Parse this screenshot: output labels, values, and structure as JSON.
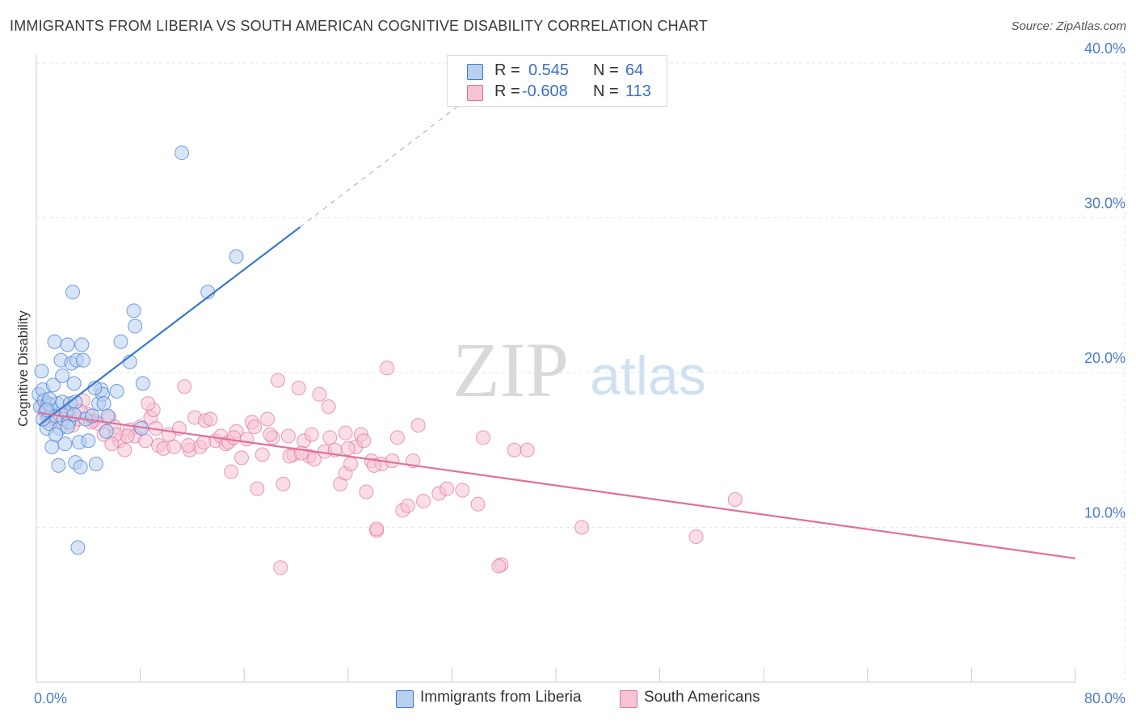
{
  "title": "IMMIGRANTS FROM LIBERIA VS SOUTH AMERICAN COGNITIVE DISABILITY CORRELATION CHART",
  "source": "Source: ZipAtlas.com",
  "watermark": {
    "zip": "ZIP",
    "atlas": "atlas"
  },
  "colors": {
    "blue": "#3a77d0",
    "blue_fill": "#b8cff0",
    "pink": "#e0709a",
    "pink_fill": "#f5c3d4",
    "axis_label": "#4a7cc9",
    "grid": "#e6e6e6"
  },
  "legend": {
    "rows": [
      {
        "r_label": "R =",
        "r_value": "0.545",
        "n_label": "N =",
        "n_value": "64"
      },
      {
        "r_label": "R =",
        "r_value": "-0.608",
        "n_label": "N =",
        "n_value": "113"
      }
    ]
  },
  "bottom_legend": [
    {
      "label": "Immigrants from Liberia"
    },
    {
      "label": "South Americans"
    }
  ],
  "chart_data": {
    "type": "scatter",
    "title": "IMMIGRANTS FROM LIBERIA VS SOUTH AMERICAN COGNITIVE DISABILITY CORRELATION CHART",
    "ylabel": "Cognitive Disability",
    "xlabel": "",
    "xlim": [
      0,
      80
    ],
    "ylim": [
      0,
      40
    ],
    "x_tick_labels": [
      "0.0%",
      "80.0%"
    ],
    "y_ticks": [
      10,
      20,
      30,
      40
    ],
    "y_tick_labels": [
      "10.0%",
      "20.0%",
      "30.0%",
      "40.0%"
    ],
    "grid": true,
    "series": [
      {
        "name": "Immigrants from Liberia",
        "color": "#3a77d0",
        "trend": {
          "x0": 0.2,
          "y0": 16.6,
          "x1": 20.3,
          "y1": 29.4,
          "dash_to_x": 34.0,
          "dash_to_y": 38.2
        },
        "points": [
          [
            0.2,
            18.6
          ],
          [
            0.3,
            17.8
          ],
          [
            0.4,
            20.1
          ],
          [
            0.5,
            18.9
          ],
          [
            0.6,
            18.2
          ],
          [
            0.7,
            17.5
          ],
          [
            0.8,
            16.4
          ],
          [
            0.9,
            18.0
          ],
          [
            1.0,
            16.7
          ],
          [
            1.1,
            17.9
          ],
          [
            1.2,
            15.2
          ],
          [
            1.3,
            19.2
          ],
          [
            1.4,
            22.0
          ],
          [
            1.5,
            17.2
          ],
          [
            1.6,
            18.0
          ],
          [
            1.7,
            14.0
          ],
          [
            1.8,
            16.4
          ],
          [
            1.9,
            20.8
          ],
          [
            2.0,
            18.1
          ],
          [
            2.1,
            17.0
          ],
          [
            2.2,
            15.4
          ],
          [
            2.3,
            17.4
          ],
          [
            2.4,
            21.8
          ],
          [
            2.5,
            16.8
          ],
          [
            2.6,
            18.0
          ],
          [
            2.7,
            20.6
          ],
          [
            2.8,
            25.2
          ],
          [
            2.9,
            19.3
          ],
          [
            3.0,
            14.2
          ],
          [
            3.1,
            20.8
          ],
          [
            3.2,
            8.7
          ],
          [
            3.3,
            15.5
          ],
          [
            3.4,
            13.9
          ],
          [
            3.5,
            21.8
          ],
          [
            3.6,
            20.8
          ],
          [
            3.8,
            17.0
          ],
          [
            4.0,
            15.6
          ],
          [
            4.3,
            17.2
          ],
          [
            4.6,
            14.1
          ],
          [
            4.8,
            18.0
          ],
          [
            5.0,
            18.9
          ],
          [
            5.1,
            18.6
          ],
          [
            5.2,
            18.0
          ],
          [
            5.4,
            16.2
          ],
          [
            5.5,
            17.2
          ],
          [
            6.2,
            18.8
          ],
          [
            6.5,
            22.0
          ],
          [
            7.2,
            20.7
          ],
          [
            7.5,
            24.0
          ],
          [
            7.6,
            23.0
          ],
          [
            8.2,
            19.3
          ],
          [
            8.1,
            16.4
          ],
          [
            11.2,
            34.2
          ],
          [
            13.2,
            25.2
          ],
          [
            15.4,
            27.5
          ],
          [
            0.5,
            17.0
          ],
          [
            1.0,
            18.3
          ],
          [
            2.0,
            19.8
          ],
          [
            2.4,
            16.5
          ],
          [
            3.0,
            18.1
          ],
          [
            4.5,
            19.0
          ],
          [
            1.5,
            16.0
          ],
          [
            0.8,
            17.6
          ],
          [
            2.9,
            17.3
          ]
        ]
      },
      {
        "name": "South Americans",
        "color": "#e0709a",
        "trend": {
          "x0": 0.2,
          "y0": 17.4,
          "x1": 80.0,
          "y1": 8.0
        },
        "points": [
          [
            0.5,
            17.8
          ],
          [
            0.8,
            17.2
          ],
          [
            1.2,
            17.6
          ],
          [
            1.6,
            17.0
          ],
          [
            2.0,
            16.8
          ],
          [
            2.4,
            17.4
          ],
          [
            2.8,
            16.6
          ],
          [
            3.2,
            17.0
          ],
          [
            3.6,
            18.2
          ],
          [
            4.0,
            17.3
          ],
          [
            4.4,
            16.9
          ],
          [
            4.8,
            16.7
          ],
          [
            5.2,
            16.0
          ],
          [
            5.6,
            17.1
          ],
          [
            6.0,
            16.5
          ],
          [
            6.4,
            15.6
          ],
          [
            6.8,
            15.0
          ],
          [
            7.2,
            16.3
          ],
          [
            7.6,
            15.9
          ],
          [
            8.0,
            16.5
          ],
          [
            8.4,
            15.6
          ],
          [
            8.8,
            17.1
          ],
          [
            9.0,
            17.6
          ],
          [
            9.4,
            15.3
          ],
          [
            9.8,
            15.1
          ],
          [
            10.2,
            16.0
          ],
          [
            10.6,
            15.2
          ],
          [
            11.0,
            16.4
          ],
          [
            11.4,
            19.1
          ],
          [
            11.8,
            15.0
          ],
          [
            12.2,
            17.1
          ],
          [
            12.6,
            15.2
          ],
          [
            13.0,
            16.9
          ],
          [
            13.4,
            17.0
          ],
          [
            13.8,
            15.6
          ],
          [
            14.2,
            15.9
          ],
          [
            14.6,
            15.4
          ],
          [
            15.0,
            13.6
          ],
          [
            15.4,
            16.2
          ],
          [
            15.8,
            14.5
          ],
          [
            16.2,
            15.7
          ],
          [
            16.6,
            16.8
          ],
          [
            17.0,
            12.5
          ],
          [
            17.4,
            14.7
          ],
          [
            17.8,
            17.0
          ],
          [
            18.2,
            15.8
          ],
          [
            18.6,
            19.5
          ],
          [
            19.0,
            12.8
          ],
          [
            19.4,
            15.9
          ],
          [
            19.8,
            14.7
          ],
          [
            20.2,
            19.0
          ],
          [
            20.6,
            15.6
          ],
          [
            21.0,
            14.6
          ],
          [
            21.4,
            14.4
          ],
          [
            21.8,
            18.6
          ],
          [
            22.2,
            14.9
          ],
          [
            22.6,
            15.8
          ],
          [
            23.0,
            15.0
          ],
          [
            23.4,
            12.8
          ],
          [
            23.8,
            13.5
          ],
          [
            24.2,
            14.1
          ],
          [
            24.6,
            15.2
          ],
          [
            25.0,
            16.0
          ],
          [
            25.4,
            12.3
          ],
          [
            25.8,
            14.3
          ],
          [
            26.2,
            9.8
          ],
          [
            26.6,
            14.1
          ],
          [
            27.0,
            20.3
          ],
          [
            27.4,
            14.3
          ],
          [
            27.8,
            15.8
          ],
          [
            28.2,
            11.1
          ],
          [
            28.6,
            11.4
          ],
          [
            29.0,
            14.3
          ],
          [
            29.4,
            16.6
          ],
          [
            29.8,
            11.7
          ],
          [
            31.0,
            12.2
          ],
          [
            31.6,
            12.5
          ],
          [
            32.8,
            12.4
          ],
          [
            34.0,
            11.5
          ],
          [
            34.4,
            15.8
          ],
          [
            35.8,
            7.6
          ],
          [
            36.8,
            15.0
          ],
          [
            37.8,
            15.0
          ],
          [
            42.0,
            10.0
          ],
          [
            50.8,
            9.4
          ],
          [
            53.8,
            11.8
          ],
          [
            18.8,
            7.4
          ],
          [
            19.5,
            14.6
          ],
          [
            16.8,
            16.5
          ],
          [
            14.8,
            15.5
          ],
          [
            26.0,
            14.0
          ],
          [
            25.2,
            15.6
          ],
          [
            22.5,
            17.8
          ],
          [
            18.0,
            16.0
          ],
          [
            12.9,
            15.5
          ],
          [
            11.7,
            15.3
          ],
          [
            9.2,
            16.4
          ],
          [
            8.6,
            18.0
          ],
          [
            7.0,
            15.9
          ],
          [
            6.1,
            16.0
          ],
          [
            5.8,
            15.4
          ],
          [
            3.4,
            17.5
          ],
          [
            2.6,
            17.7
          ],
          [
            1.8,
            17.3
          ],
          [
            0.9,
            16.9
          ],
          [
            24.0,
            15.1
          ],
          [
            20.4,
            14.8
          ],
          [
            21.2,
            16.0
          ],
          [
            23.8,
            16.1
          ],
          [
            26.2,
            9.9
          ],
          [
            35.6,
            7.5
          ],
          [
            15.2,
            15.8
          ],
          [
            4.2,
            16.8
          ]
        ]
      }
    ]
  }
}
